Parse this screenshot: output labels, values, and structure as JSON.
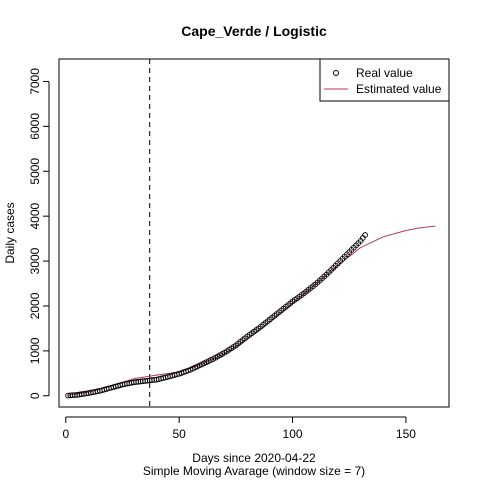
{
  "chart_data": {
    "type": "scatter",
    "title": "Cape_Verde / Logistic",
    "xlabel": "Days since 2020-04-22",
    "xlabel2": "Simple Moving Avarage (window size = 7)",
    "ylabel": "Daily cases",
    "xlim": [
      -3,
      169
    ],
    "ylim": [
      -250,
      7500
    ],
    "xticks": [
      0,
      50,
      100,
      150
    ],
    "yticks": [
      0,
      1000,
      2000,
      3000,
      4000,
      5000,
      6000,
      7000
    ],
    "vline_x": 37,
    "legend": {
      "position": "top-right",
      "entries": [
        "Real value",
        "Estimated value"
      ]
    },
    "colors": {
      "estimated": "#b03a5b",
      "points": "#000000"
    },
    "real_anchors": [
      [
        1,
        5
      ],
      [
        5,
        20
      ],
      [
        10,
        60
      ],
      [
        15,
        110
      ],
      [
        20,
        180
      ],
      [
        25,
        250
      ],
      [
        30,
        300
      ],
      [
        35,
        330
      ],
      [
        40,
        360
      ],
      [
        45,
        420
      ],
      [
        50,
        490
      ],
      [
        55,
        580
      ],
      [
        60,
        700
      ],
      [
        65,
        820
      ],
      [
        70,
        960
      ],
      [
        75,
        1120
      ],
      [
        80,
        1320
      ],
      [
        85,
        1500
      ],
      [
        90,
        1700
      ],
      [
        95,
        1900
      ],
      [
        100,
        2100
      ],
      [
        105,
        2280
      ],
      [
        110,
        2480
      ],
      [
        115,
        2700
      ],
      [
        120,
        2950
      ],
      [
        125,
        3200
      ],
      [
        130,
        3450
      ],
      [
        132,
        3580
      ]
    ],
    "est_anchors": [
      [
        1,
        10
      ],
      [
        10,
        80
      ],
      [
        20,
        220
      ],
      [
        30,
        380
      ],
      [
        40,
        460
      ],
      [
        50,
        530
      ],
      [
        60,
        700
      ],
      [
        70,
        940
      ],
      [
        80,
        1260
      ],
      [
        90,
        1640
      ],
      [
        100,
        2060
      ],
      [
        110,
        2480
      ],
      [
        120,
        2900
      ],
      [
        130,
        3300
      ],
      [
        140,
        3540
      ],
      [
        150,
        3680
      ],
      [
        155,
        3730
      ],
      [
        163,
        3780
      ]
    ]
  }
}
